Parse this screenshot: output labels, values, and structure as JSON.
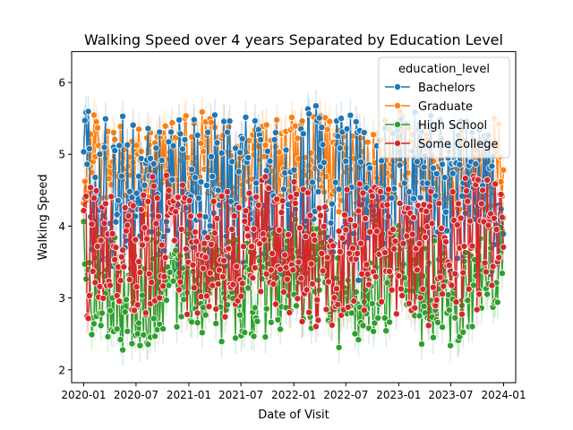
{
  "chart_data": {
    "type": "line",
    "title": "Walking Speed over 4 years Separated by Education Level",
    "xlabel": "Date of Visit",
    "ylabel": "Walking Speed",
    "xlim": [
      "2019-11-20",
      "2024-02-12"
    ],
    "ylim": [
      1.82,
      6.43
    ],
    "x_ticks": [
      "2020-01",
      "2020-07",
      "2021-01",
      "2021-07",
      "2022-01",
      "2022-07",
      "2023-01",
      "2023-07",
      "2024-01"
    ],
    "y_ticks": [
      2,
      3,
      4,
      5,
      6
    ],
    "grid": false,
    "legend": {
      "title": "education_level",
      "placement": "top-right"
    },
    "markers": "circle",
    "error_band": true,
    "date_range": [
      "2020-01-01",
      "2023-12-31"
    ],
    "series": [
      {
        "name": "Bachelors",
        "color": "#1f77b4",
        "mean_approx": 4.45,
        "min_approx": 2.35,
        "max_approx": 5.95
      },
      {
        "name": "Graduate",
        "color": "#ff7f0e",
        "mean_approx": 4.85,
        "min_approx": 4.05,
        "max_approx": 6.1
      },
      {
        "name": "High School",
        "color": "#2ca02c",
        "mean_approx": 3.2,
        "min_approx": 2.0,
        "max_approx": 4.6
      },
      {
        "name": "Some College",
        "color": "#d62728",
        "mean_approx": 3.65,
        "min_approx": 2.0,
        "max_approx": 5.05
      }
    ]
  }
}
